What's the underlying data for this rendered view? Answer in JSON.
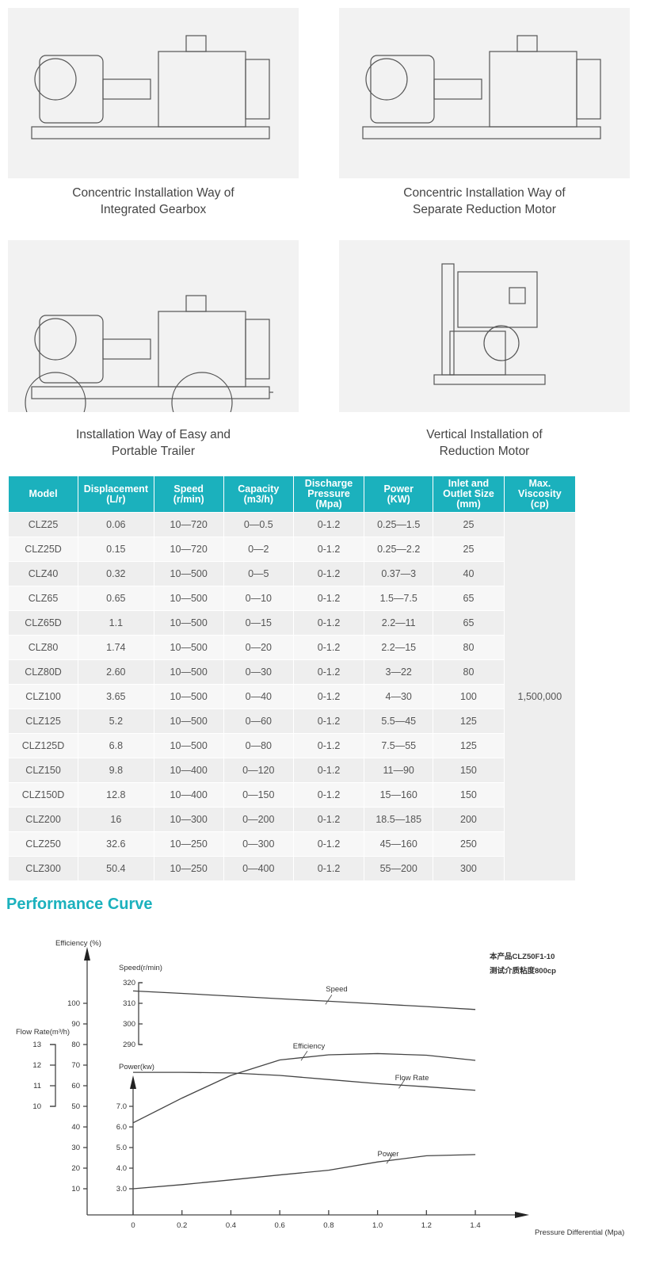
{
  "installations": [
    {
      "caption_line1": "Concentric Installation Way of",
      "caption_line2": "Integrated Gearbox"
    },
    {
      "caption_line1": "Concentric Installation Way of",
      "caption_line2": "Separate Reduction Motor"
    },
    {
      "caption_line1": "Installation Way of Easy and",
      "caption_line2": "Portable Trailer"
    },
    {
      "caption_line1": "Vertical Installation of",
      "caption_line2": "Reduction Motor"
    }
  ],
  "table": {
    "headers": [
      [
        "Model",
        ""
      ],
      [
        "Displacement",
        "(L/r)"
      ],
      [
        "Speed",
        "(r/min)"
      ],
      [
        "Capacity",
        "(m3/h)"
      ],
      [
        "Discharge Pressure",
        "(Mpa)"
      ],
      [
        "Power",
        "(KW)"
      ],
      [
        "Inlet and Outlet Size",
        "(mm)"
      ],
      [
        "Max. Viscosity",
        "(cp)"
      ]
    ],
    "max_viscosity": "1,500,000",
    "rows": [
      [
        "CLZ25",
        "0.06",
        "10—720",
        "0—0.5",
        "0-1.2",
        "0.25—1.5",
        "25"
      ],
      [
        "CLZ25D",
        "0.15",
        "10—720",
        "0—2",
        "0-1.2",
        "0.25—2.2",
        "25"
      ],
      [
        "CLZ40",
        "0.32",
        "10—500",
        "0—5",
        "0-1.2",
        "0.37—3",
        "40"
      ],
      [
        "CLZ65",
        "0.65",
        "10—500",
        "0—10",
        "0-1.2",
        "1.5—7.5",
        "65"
      ],
      [
        "CLZ65D",
        "1.1",
        "10—500",
        "0—15",
        "0-1.2",
        "2.2—11",
        "65"
      ],
      [
        "CLZ80",
        "1.74",
        "10—500",
        "0—20",
        "0-1.2",
        "2.2—15",
        "80"
      ],
      [
        "CLZ80D",
        "2.60",
        "10—500",
        "0—30",
        "0-1.2",
        "3—22",
        "80"
      ],
      [
        "CLZ100",
        "3.65",
        "10—500",
        "0—40",
        "0-1.2",
        "4—30",
        "100"
      ],
      [
        "CLZ125",
        "5.2",
        "10—500",
        "0—60",
        "0-1.2",
        "5.5—45",
        "125"
      ],
      [
        "CLZ125D",
        "6.8",
        "10—500",
        "0—80",
        "0-1.2",
        "7.5—55",
        "125"
      ],
      [
        "CLZ150",
        "9.8",
        "10—400",
        "0—120",
        "0-1.2",
        "11—90",
        "150"
      ],
      [
        "CLZ150D",
        "12.8",
        "10—400",
        "0—150",
        "0-1.2",
        "15—160",
        "150"
      ],
      [
        "CLZ200",
        "16",
        "10—300",
        "0—200",
        "0-1.2",
        "18.5—185",
        "200"
      ],
      [
        "CLZ250",
        "32.6",
        "10—250",
        "0—300",
        "0-1.2",
        "45—160",
        "250"
      ],
      [
        "CLZ300",
        "50.4",
        "10—250",
        "0—400",
        "0-1.2",
        "55—200",
        "300"
      ]
    ]
  },
  "section_title": "Performance Curve",
  "accent_color": "#1bb1bd",
  "chart_data": {
    "type": "line",
    "note": [
      "本产品CLZ50F1-10",
      "测试介质粘度800cp"
    ],
    "xlabel": "Pressure Differential (Mpa)",
    "x_ticks": [
      "0",
      "0.2",
      "0.4",
      "0.6",
      "0.8",
      "1.0",
      "1.2",
      "1.4"
    ],
    "xlim": [
      0,
      1.4
    ],
    "axes": {
      "efficiency": {
        "label": "Efficiency (%)",
        "ticks": [
          10,
          20,
          30,
          40,
          50,
          60,
          70,
          80,
          90,
          100
        ]
      },
      "speed": {
        "label": "Speed(r/min)",
        "ticks": [
          290,
          300,
          310,
          320
        ]
      },
      "flow": {
        "label": "Flow Rate(m³/h)",
        "ticks": [
          10,
          11,
          12,
          13
        ]
      },
      "power": {
        "label": "Power(kw)",
        "ticks": [
          "3.0",
          "4.0",
          "5.0",
          "6.0",
          "7.0"
        ]
      }
    },
    "x": [
      0,
      0.2,
      0.4,
      0.6,
      0.8,
      1.0,
      1.2,
      1.4
    ],
    "series": [
      {
        "name": "Speed",
        "axis": "speed",
        "values": [
          316,
          314.8,
          313.5,
          312.2,
          311,
          309.7,
          308.4,
          307
        ]
      },
      {
        "name": "Efficiency",
        "axis": "efficiency",
        "values": [
          42,
          54,
          65,
          72.5,
          75,
          75.6,
          74.8,
          72.3
        ]
      },
      {
        "name": "Flow Rate",
        "axis": "flow",
        "values": [
          11.65,
          11.65,
          11.62,
          11.5,
          11.3,
          11.1,
          10.95,
          10.78
        ]
      },
      {
        "name": "Power",
        "axis": "power",
        "values": [
          3.0,
          3.2,
          3.43,
          3.67,
          3.9,
          4.3,
          4.6,
          4.66
        ]
      }
    ]
  }
}
